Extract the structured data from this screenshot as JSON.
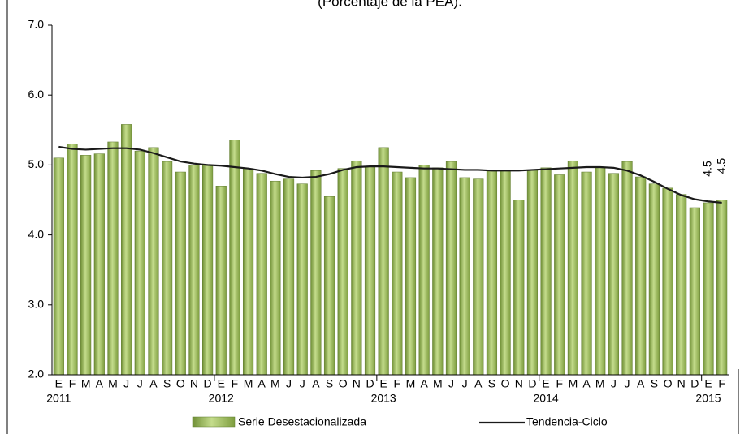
{
  "chart_data": {
    "type": "bar",
    "title": "(Porcentaje de la PEA).",
    "categories": [
      "E",
      "F",
      "M",
      "A",
      "M",
      "J",
      "J",
      "A",
      "S",
      "O",
      "N",
      "D",
      "E",
      "F",
      "M",
      "A",
      "M",
      "J",
      "J",
      "A",
      "S",
      "O",
      "N",
      "D",
      "E",
      "F",
      "M",
      "A",
      "M",
      "J",
      "J",
      "A",
      "S",
      "O",
      "N",
      "D",
      "E",
      "F",
      "M",
      "A",
      "M",
      "J",
      "J",
      "A",
      "S",
      "O",
      "N",
      "D",
      "E",
      "F"
    ],
    "x_groups": [
      "2011",
      "2012",
      "2013",
      "2014",
      "2015"
    ],
    "series": [
      {
        "name": "Serie Desestacionalizada",
        "color": "#9bbb59",
        "values": [
          5.1,
          5.3,
          5.14,
          5.16,
          5.33,
          5.58,
          5.2,
          5.25,
          5.05,
          4.9,
          5.0,
          5.0,
          4.7,
          5.36,
          4.95,
          4.88,
          4.77,
          4.8,
          4.73,
          4.92,
          4.55,
          4.95,
          5.06,
          4.98,
          5.25,
          4.9,
          4.82,
          5.0,
          4.96,
          5.05,
          4.82,
          4.8,
          4.93,
          4.92,
          4.5,
          4.93,
          4.96,
          4.86,
          5.06,
          4.9,
          4.96,
          4.88,
          5.05,
          4.83,
          4.73,
          4.67,
          4.58,
          4.39,
          4.46,
          4.5
        ],
        "value_labels": [
          null,
          null,
          null,
          null,
          null,
          null,
          null,
          null,
          null,
          null,
          null,
          null,
          null,
          null,
          null,
          null,
          null,
          null,
          null,
          null,
          null,
          null,
          null,
          null,
          null,
          null,
          null,
          null,
          null,
          null,
          null,
          null,
          null,
          null,
          null,
          null,
          null,
          null,
          null,
          null,
          null,
          null,
          null,
          null,
          null,
          null,
          null,
          null,
          "4.5",
          "4.5"
        ]
      },
      {
        "name": "Tendencia-Ciclo",
        "color": "#1a1a1a",
        "type": "line",
        "values": [
          5.26,
          5.23,
          5.22,
          5.23,
          5.24,
          5.24,
          5.22,
          5.17,
          5.11,
          5.05,
          5.02,
          5.0,
          4.99,
          4.97,
          4.95,
          4.92,
          4.87,
          4.83,
          4.82,
          4.83,
          4.87,
          4.93,
          4.97,
          4.98,
          4.98,
          4.97,
          4.96,
          4.95,
          4.95,
          4.94,
          4.93,
          4.93,
          4.92,
          4.92,
          4.92,
          4.93,
          4.94,
          4.95,
          4.96,
          4.97,
          4.97,
          4.96,
          4.92,
          4.85,
          4.76,
          4.66,
          4.57,
          4.51,
          4.48,
          4.46
        ]
      }
    ],
    "ylim": [
      2,
      7
    ],
    "yticks": [
      {
        "value": 2,
        "label": "2.0"
      },
      {
        "value": 3,
        "label": "3.0"
      },
      {
        "value": 4,
        "label": "4.0"
      },
      {
        "value": 5,
        "label": "5.0"
      },
      {
        "value": 6,
        "label": "6.0"
      },
      {
        "value": 7,
        "label": "7.0"
      }
    ],
    "grid": false,
    "legend": "bottom"
  }
}
